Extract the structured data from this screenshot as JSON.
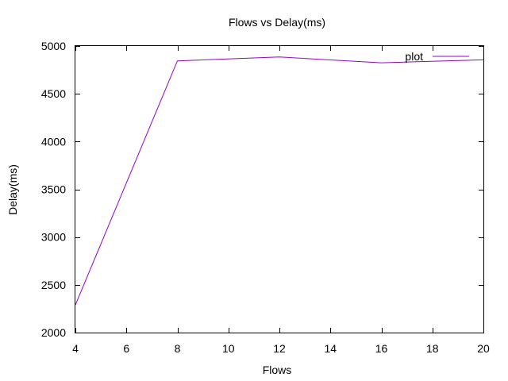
{
  "chart_data": {
    "type": "line",
    "title": "Flows vs Delay(ms)",
    "xlabel": "Flows",
    "ylabel": "Delay(ms)",
    "xlim": [
      4,
      20
    ],
    "ylim": [
      2000,
      5000
    ],
    "xticks": [
      4,
      6,
      8,
      10,
      12,
      14,
      16,
      18,
      20
    ],
    "yticks": [
      2000,
      2500,
      3000,
      3500,
      4000,
      4500,
      5000
    ],
    "grid": false,
    "legend_position": "top-right",
    "series": [
      {
        "name": "plot",
        "color": "#9400d3",
        "x": [
          4,
          8,
          12,
          16,
          20
        ],
        "y": [
          2290,
          4845,
          4885,
          4825,
          4855
        ]
      }
    ]
  }
}
